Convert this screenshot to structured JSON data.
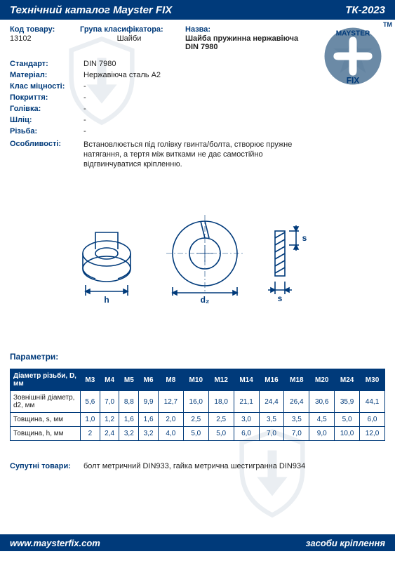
{
  "header": {
    "title": "Технічний каталог Mayster FIX",
    "code": "ТК-2023"
  },
  "meta": {
    "code_label": "Код товару:",
    "code_value": "13102",
    "group_label": "Група класифікатора:",
    "group_value": "Шайби",
    "name_label": "Назва:",
    "name_value": "Шайба пружинна нержавіюча DIN 7980"
  },
  "logo": {
    "top_text": "MAYSTER",
    "bottom_text": "FIX",
    "tm": "TM",
    "circle_fill": "#6b8aa6",
    "cross_fill": "#ffffff",
    "text_color": "#003a7a"
  },
  "specs": [
    {
      "key": "Стандарт:",
      "val": "DIN 7980"
    },
    {
      "key": "Матеріал:",
      "val": "Нержавіюча сталь А2"
    },
    {
      "key": "Клас міцності:",
      "val": "-"
    },
    {
      "key": "Покриття:",
      "val": "-"
    },
    {
      "key": "Голівка:",
      "val": "-"
    },
    {
      "key": "Шліц:",
      "val": "-"
    },
    {
      "key": "Різьба:",
      "val": "-"
    }
  ],
  "features": {
    "key": "Особливості:",
    "val": "Встановлюється під голівку гвинта/болта, створює пружне натягання, а тертя між витками не дає самостійно відгвинчуватися кріпленню."
  },
  "diagram": {
    "stroke": "#003a7a",
    "labels": {
      "h": "h",
      "d2": "d₂",
      "s": "s",
      "sv": "s"
    }
  },
  "params_title": "Параметри:",
  "params": {
    "header_first": "Діаметр різьби, D, мм",
    "columns": [
      "М3",
      "М4",
      "М5",
      "М6",
      "М8",
      "М10",
      "М12",
      "М14",
      "М16",
      "М18",
      "М20",
      "М24",
      "М30"
    ],
    "rows": [
      {
        "label": "Зовнішній діаметр, d2, мм",
        "cells": [
          "5,6",
          "7,0",
          "8,8",
          "9,9",
          "12,7",
          "16,0",
          "18,0",
          "21,1",
          "24,4",
          "26,4",
          "30,6",
          "35,9",
          "44,1"
        ]
      },
      {
        "label": "Товщина, s, мм",
        "cells": [
          "1,0",
          "1,2",
          "1,6",
          "1,6",
          "2,0",
          "2,5",
          "2,5",
          "3,0",
          "3,5",
          "3,5",
          "4,5",
          "5,0",
          "6,0"
        ]
      },
      {
        "label": "Товщина, h, мм",
        "cells": [
          "2",
          "2,4",
          "3,2",
          "3,2",
          "4,0",
          "5,0",
          "5,0",
          "6,0",
          "7,0",
          "7,0",
          "9,0",
          "10,0",
          "12,0"
        ]
      }
    ],
    "header_bg": "#003a7a",
    "header_color": "#ffffff",
    "border_color": "#003a7a"
  },
  "related": {
    "key": "Супутні товари:",
    "val": "болт метричний DIN933, гайка метрична шестигранна DIN934"
  },
  "footer": {
    "url": "www.maysterfix.com",
    "tagline": "засоби кріплення"
  },
  "colors": {
    "brand": "#003a7a",
    "text": "#222222",
    "bg": "#ffffff"
  }
}
